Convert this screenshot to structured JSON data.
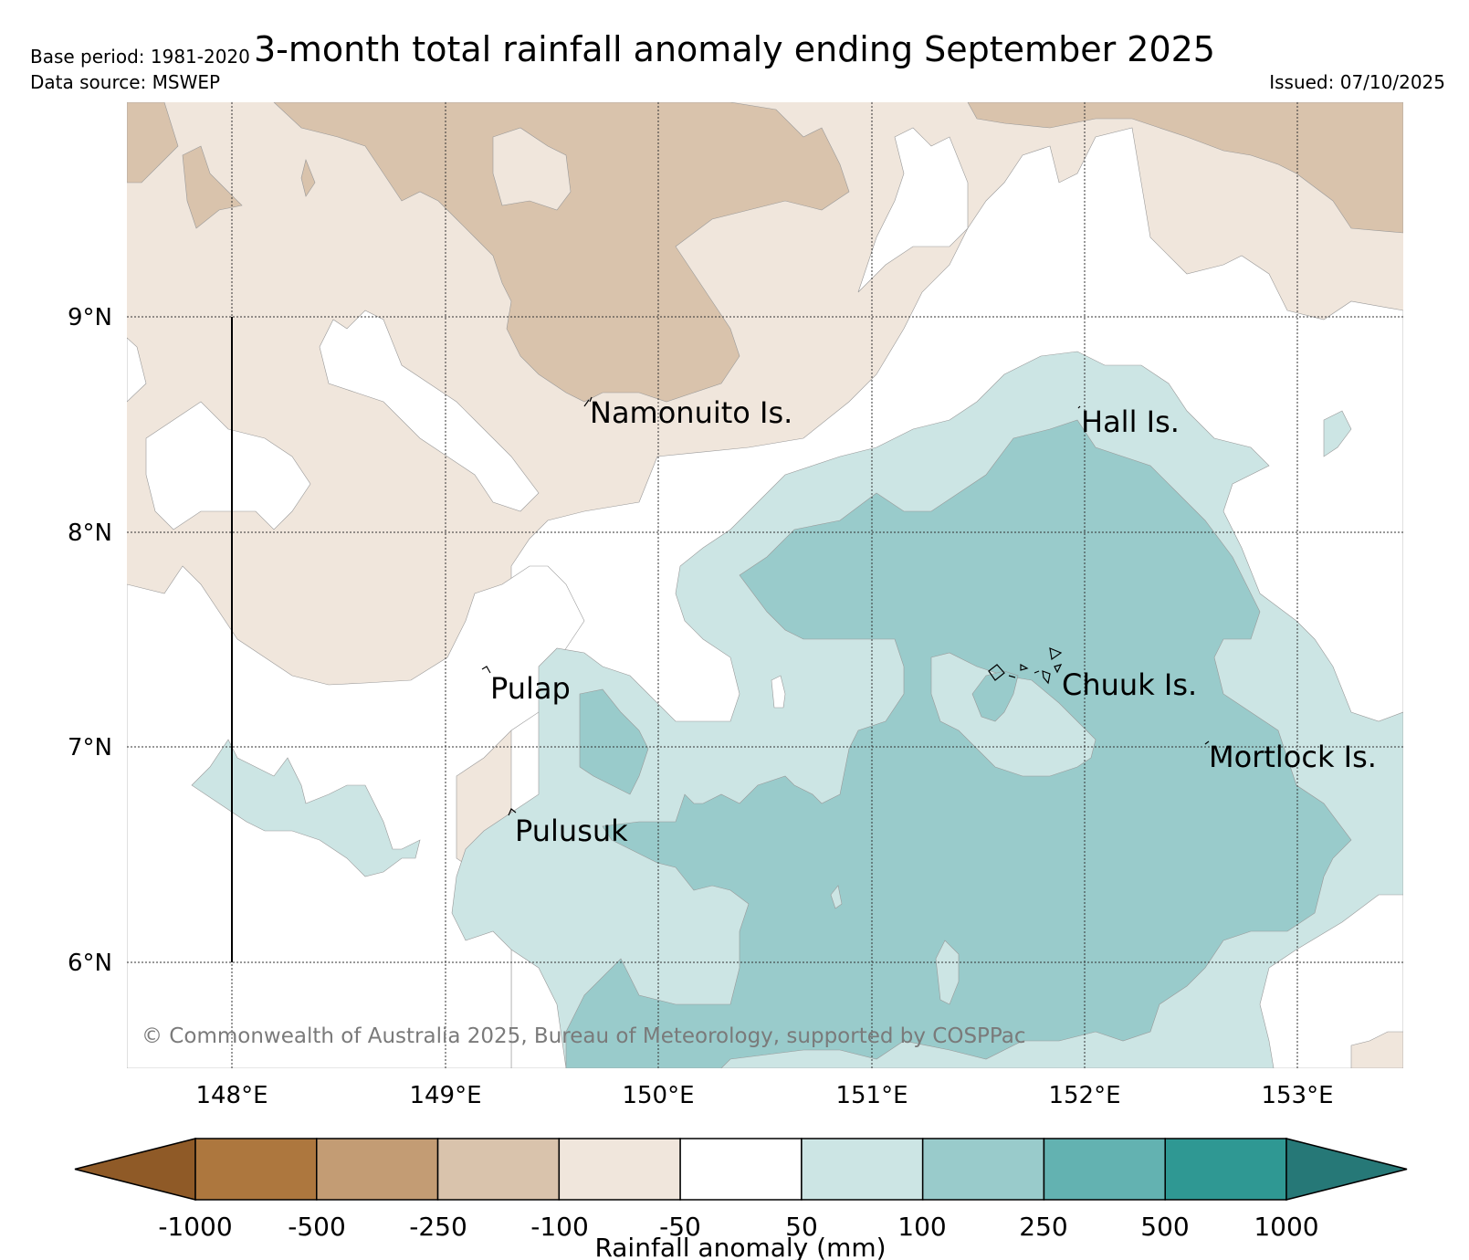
{
  "title": "3-month total rainfall anomaly ending September 2025",
  "base_period": "Base period: 1981-2020",
  "data_source": "Data source: MSWEP",
  "issued": "Issued: 07/10/2025",
  "copyright": "© Commonwealth of Australia 2025, Bureau of Meteorology, supported by COSPPac",
  "map": {
    "lat_labels": [
      "9°N",
      "8°N",
      "7°N",
      "6°N"
    ],
    "lon_labels": [
      "148°E",
      "149°E",
      "150°E",
      "151°E",
      "152°E",
      "153°E"
    ],
    "places": [
      {
        "name": "Namonuito Is."
      },
      {
        "name": "Hall Is."
      },
      {
        "name": "Pulap"
      },
      {
        "name": "Chuuk Is."
      },
      {
        "name": "Mortlock Is."
      },
      {
        "name": "Pulusuk"
      }
    ]
  },
  "colorbar": {
    "title": "Rainfall anomaly (mm)",
    "ticks": [
      "-1000",
      "-500",
      "-250",
      "-100",
      "-50",
      "50",
      "100",
      "250",
      "500",
      "1000"
    ],
    "colors": [
      "#8f5a27",
      "#ad773e",
      "#c39c74",
      "#d9c3ac",
      "#f0e6dc",
      "#ffffff",
      "#cce5e4",
      "#99cbcb",
      "#63b2b1",
      "#2f9893",
      "#267877"
    ]
  }
}
